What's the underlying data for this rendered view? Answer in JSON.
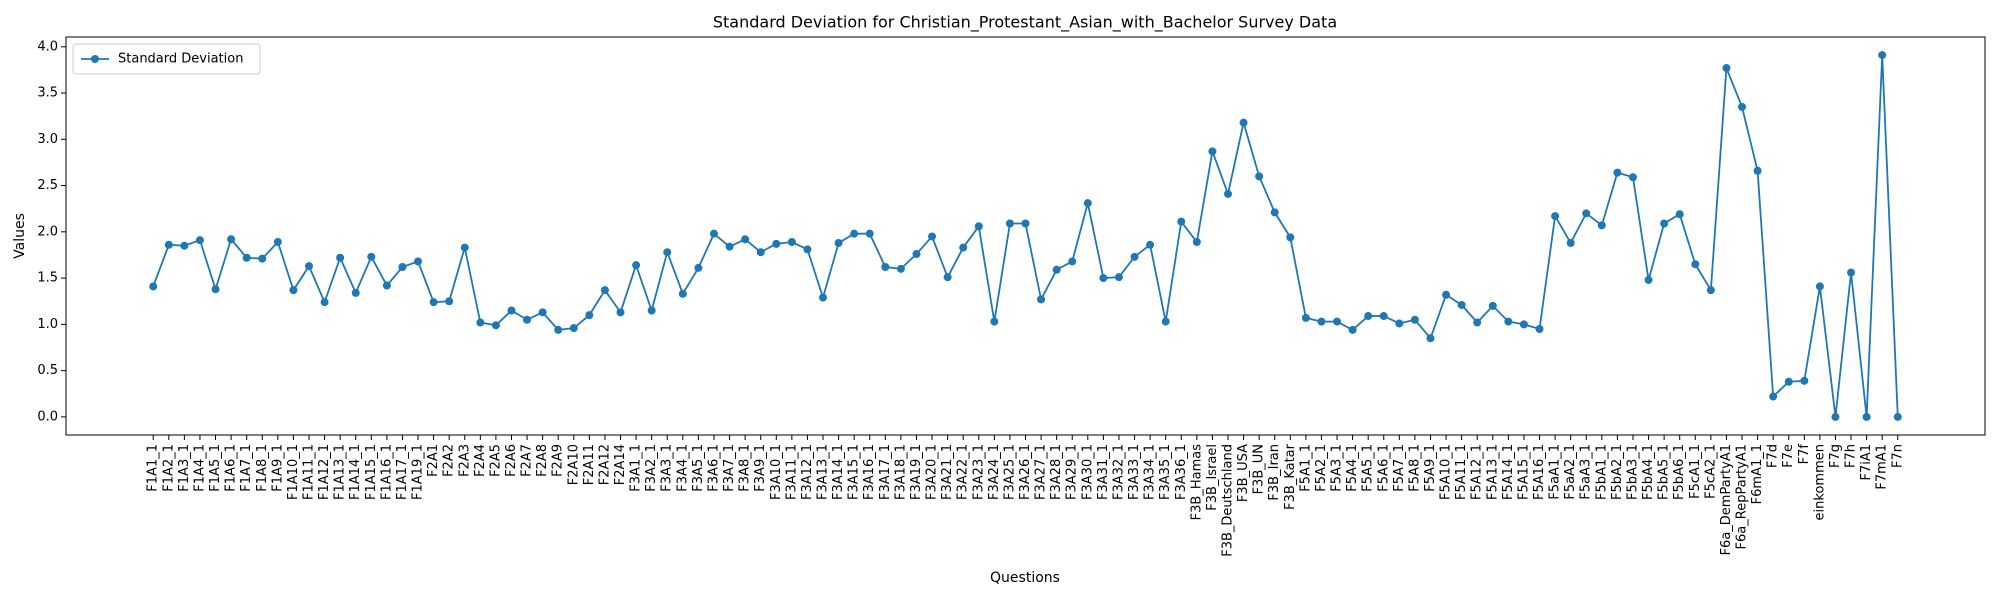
{
  "chart_data": {
    "type": "line",
    "title": "Standard Deviation for Christian_Protestant_Asian_with_Bachelor Survey Data",
    "x_label": "Questions",
    "y_label": "Values",
    "categories": [
      "F1A1_1",
      "F1A2_1",
      "F1A3_1",
      "F1A4_1",
      "F1A5_1",
      "F1A6_1",
      "F1A7_1",
      "F1A8_1",
      "F1A9_1",
      "F1A10_1",
      "F1A11_1",
      "F1A12_1",
      "F1A13_1",
      "F1A14_1",
      "F1A15_1",
      "F1A16_1",
      "F1A17_1",
      "F1A19_1",
      "F2A1",
      "F2A2",
      "F2A3",
      "F2A4",
      "F2A5",
      "F2A6",
      "F2A7",
      "F2A8",
      "F2A9",
      "F2A10",
      "F2A11",
      "F2A12",
      "F2A14",
      "F3A1_1",
      "F3A2_1",
      "F3A3_1",
      "F3A4_1",
      "F3A5_1",
      "F3A6_1",
      "F3A7_1",
      "F3A8_1",
      "F3A9_1",
      "F3A10_1",
      "F3A11_1",
      "F3A12_1",
      "F3A13_1",
      "F3A14_1",
      "F3A15_1",
      "F3A16_1",
      "F3A17_1",
      "F3A18_1",
      "F3A19_1",
      "F3A20_1",
      "F3A21_1",
      "F3A22_1",
      "F3A23_1",
      "F3A24_1",
      "F3A25_1",
      "F3A26_1",
      "F3A27_1",
      "F3A28_1",
      "F3A29_1",
      "F3A30_1",
      "F3A31_1",
      "F3A32_1",
      "F3A33_1",
      "F3A34_1",
      "F3A35_1",
      "F3A36_1",
      "F3B_Hamas",
      "F3B_Israel",
      "F3B_Deutschland",
      "F3B_USA",
      "F3B_UN",
      "F3B_Iran",
      "F3B_Katar",
      "F5A1_1",
      "F5A2_1",
      "F5A3_1",
      "F5A4_1",
      "F5A5_1",
      "F5A6_1",
      "F5A7_1",
      "F5A8_1",
      "F5A9_1",
      "F5A10_1",
      "F5A11_1",
      "F5A12_1",
      "F5A13_1",
      "F5A14_1",
      "F5A15_1",
      "F5A16_1",
      "F5aA1_1",
      "F5aA2_1",
      "F5aA3_1",
      "F5bA1_1",
      "F5bA2_1",
      "F5bA3_1",
      "F5bA4_1",
      "F5bA5_1",
      "F5bA6_1",
      "F5cA1_1",
      "F5cA2_1",
      "F6a_DemPartyA1",
      "F6a_RepPartyA1",
      "F6mA1_1",
      "F7d",
      "F7e",
      "F7f",
      "einkommen",
      "F7g",
      "F7h",
      "F7iA1",
      "F7mA1",
      "F7n"
    ],
    "series": [
      {
        "name": "Standard Deviation",
        "color": "#1f77b4",
        "values": [
          1.41,
          1.86,
          1.85,
          1.91,
          1.38,
          1.92,
          1.72,
          1.71,
          1.89,
          1.37,
          1.63,
          1.24,
          1.72,
          1.34,
          1.73,
          1.42,
          1.62,
          1.68,
          1.24,
          1.25,
          1.83,
          1.02,
          0.99,
          1.15,
          1.05,
          1.13,
          0.94,
          0.96,
          1.1,
          1.37,
          1.13,
          1.64,
          1.15,
          1.78,
          1.33,
          1.61,
          1.98,
          1.84,
          1.92,
          1.78,
          1.87,
          1.89,
          1.81,
          1.29,
          1.88,
          1.98,
          1.98,
          1.62,
          1.6,
          1.76,
          1.95,
          1.51,
          1.83,
          2.06,
          1.03,
          2.09,
          2.09,
          1.27,
          1.59,
          1.68,
          2.31,
          1.5,
          1.51,
          1.73,
          1.86,
          1.03,
          2.11,
          1.89,
          2.87,
          2.41,
          3.18,
          2.6,
          2.21,
          1.94,
          1.07,
          1.03,
          1.03,
          0.94,
          1.09,
          1.09,
          1.01,
          1.05,
          0.85,
          1.32,
          1.21,
          1.02,
          1.2,
          1.03,
          1.0,
          0.95,
          2.17,
          1.88,
          2.2,
          2.07,
          2.64,
          2.59,
          1.48,
          2.09,
          2.19,
          1.65,
          1.37,
          3.77,
          3.35,
          2.66,
          0.22,
          0.38,
          0.39,
          1.41,
          0.0,
          1.56,
          0.0,
          3.91,
          0.0
        ]
      }
    ],
    "ylim": [
      -0.1955,
      4.1055
    ],
    "yticks": [
      {
        "value": 0,
        "label": "0.0"
      },
      0.5,
      {
        "value": 1,
        "label": "1.0"
      },
      1.5,
      {
        "value": 2,
        "label": "2.0"
      },
      2.5,
      {
        "value": 3,
        "label": "3.0"
      },
      3.5,
      {
        "value": 4,
        "label": "4.0"
      }
    ],
    "legend": "upper left",
    "grid": false
  }
}
